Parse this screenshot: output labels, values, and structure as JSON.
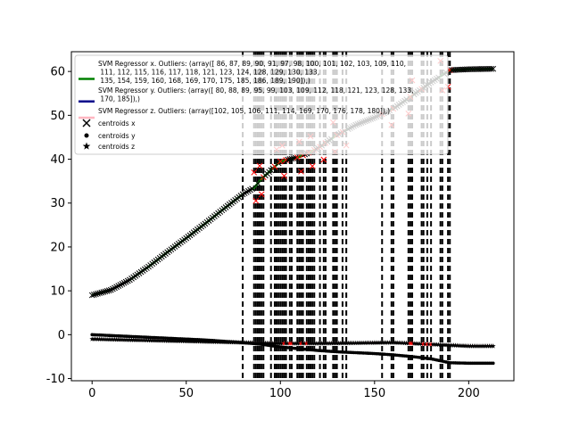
{
  "chart_data": {
    "type": "line",
    "title": "",
    "xlabel": "",
    "ylabel": "",
    "xlim": [
      -11,
      224
    ],
    "ylim": [
      -10.5,
      64.5
    ],
    "xticks": [
      0,
      50,
      100,
      150,
      200
    ],
    "yticks": [
      -10,
      0,
      10,
      20,
      30,
      40,
      50,
      60
    ],
    "grid": false,
    "legend_position": "top-left",
    "legend": [
      {
        "text": "SVM Regressor x. Outliers: (array([ 86,  87,  89,  90,  91,  97,  98, 100, 101, 102, 103, 109, 110,\n       111, 112, 115, 116, 117, 118, 121, 123, 124, 128, 129, 130, 133,\n       135, 154, 159, 160, 168, 169, 170, 175, 185, 186, 189, 190]),)",
        "kind": "line",
        "color": "#008000"
      },
      {
        "text": "SVM Regressor y. Outliers: (array([ 80,  88,  89,  95,  99, 103, 109, 112, 118, 121, 123, 128, 133,\n       170, 185]),)",
        "kind": "line",
        "color": "#00008b"
      },
      {
        "text": "SVM Regressor z. Outliers: (array([102, 105, 106, 111, 114, 169, 170, 176, 178, 180]),)",
        "kind": "line",
        "color": "#ffb6c1"
      },
      {
        "text": "centroids x",
        "kind": "x-marker",
        "color": "#000000"
      },
      {
        "text": "centroids y",
        "kind": "dot-marker",
        "color": "#000000"
      },
      {
        "text": "centroids z",
        "kind": "star-marker",
        "color": "#000000"
      }
    ],
    "outliers_x": [
      86,
      87,
      89,
      90,
      91,
      97,
      98,
      100,
      101,
      102,
      103,
      109,
      110,
      111,
      112,
      115,
      116,
      117,
      118,
      121,
      123,
      124,
      128,
      129,
      130,
      133,
      135,
      154,
      159,
      160,
      168,
      169,
      170,
      175,
      185,
      186,
      189,
      190
    ],
    "outliers_y": [
      80,
      88,
      89,
      95,
      99,
      103,
      109,
      112,
      118,
      121,
      123,
      128,
      133,
      170,
      185
    ],
    "outliers_z": [
      102,
      105,
      106,
      111,
      114,
      169,
      170,
      176,
      178,
      180
    ],
    "series": [
      {
        "name": "SVM Regressor x",
        "color": "#008000",
        "x": [
          0,
          10,
          20,
          30,
          40,
          50,
          60,
          70,
          80,
          86,
          90,
          100,
          110,
          120,
          130,
          140,
          150,
          160,
          170,
          180,
          190,
          200,
          213
        ],
        "y": [
          9,
          10.2,
          12.5,
          15.5,
          18.8,
          22,
          25.3,
          28.7,
          32,
          33.5,
          35.5,
          39.5,
          40.5,
          42.5,
          45.5,
          47.8,
          49.5,
          51.5,
          54.5,
          57.5,
          60.3,
          60.5,
          60.6
        ]
      },
      {
        "name": "SVM Regressor y",
        "color": "#00008b",
        "x": [
          0,
          20,
          40,
          60,
          80,
          90,
          100,
          110,
          120,
          130,
          140,
          150,
          160,
          170,
          180,
          190,
          200,
          213
        ],
        "y": [
          0,
          -0.4,
          -0.8,
          -1.2,
          -1.8,
          -2.2,
          -2.8,
          -3.2,
          -3.6,
          -3.9,
          -4.1,
          -4.3,
          -4.6,
          -5,
          -5.5,
          -6.4,
          -6.5,
          -6.5
        ]
      },
      {
        "name": "SVM Regressor z",
        "color": "#ffb6c1",
        "x": [
          0,
          20,
          40,
          60,
          80,
          100,
          120,
          140,
          160,
          180,
          200,
          213
        ],
        "y": [
          -1,
          -1.2,
          -1.4,
          -1.6,
          -1.8,
          -2,
          -2,
          -1.9,
          -1.8,
          -2.2,
          -2.6,
          -2.6
        ]
      }
    ]
  }
}
